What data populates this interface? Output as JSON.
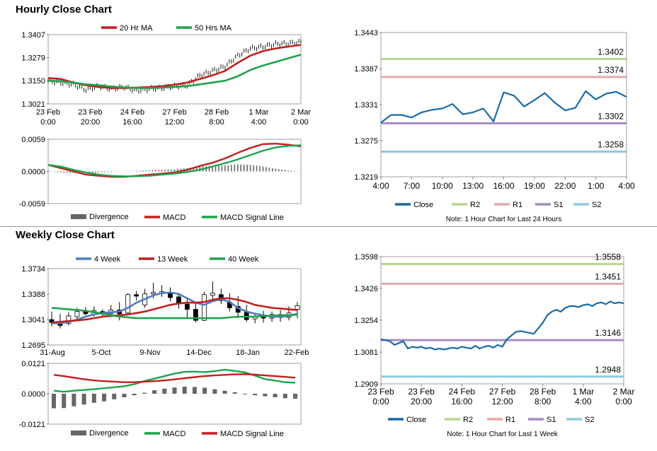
{
  "sections": {
    "hourly_title": "Hourly Close Chart",
    "weekly_title": "Weekly Close Chart"
  },
  "colors": {
    "red": "#c0201d",
    "green": "#1fa24c",
    "blue": "#4e7ec2",
    "close": "#1a6aa5",
    "r2": "#b9d68c",
    "r1": "#e7a8a6",
    "s1": "#a48bc1",
    "s2": "#8fcadc",
    "divergence": "#666666",
    "candle_up": "#ffffff",
    "candle_down": "#000000"
  },
  "chart_data": [
    {
      "id": "hourly-price",
      "type": "line",
      "title": "",
      "y_ticks": [
        "1.3407",
        "1.3279",
        "1.3150",
        "1.3021"
      ],
      "ylim": [
        1.3021,
        1.3407
      ],
      "x_tick_labels": [
        [
          "23 Feb",
          "0:00"
        ],
        [
          "23 Feb",
          "20:00"
        ],
        [
          "24 Feb",
          "16:00"
        ],
        [
          "27 Feb",
          "12:00"
        ],
        [
          "28 Feb",
          "8:00"
        ],
        [
          "1 Mar",
          "4:00"
        ],
        [
          "2 Mar",
          "0:00"
        ]
      ],
      "x": [
        0,
        1,
        2,
        3,
        4,
        5,
        6,
        7,
        8,
        9,
        10,
        11,
        12,
        13,
        14,
        15,
        16,
        17,
        18,
        19,
        20
      ],
      "price": [
        1.315,
        1.314,
        1.313,
        1.31,
        1.312,
        1.3105,
        1.3115,
        1.3095,
        1.3105,
        1.311,
        1.312,
        1.3125,
        1.318,
        1.3205,
        1.323,
        1.329,
        1.333,
        1.334,
        1.3355,
        1.3358,
        1.3365
      ],
      "series": [
        {
          "name": "20 Hr MA",
          "color": "red",
          "values": [
            1.3165,
            1.316,
            1.314,
            1.3125,
            1.3115,
            1.311,
            1.311,
            1.3112,
            1.3115,
            1.312,
            1.3128,
            1.314,
            1.316,
            1.318,
            1.3205,
            1.325,
            1.329,
            1.3315,
            1.333,
            1.334,
            1.335
          ]
        },
        {
          "name": "50 Hrs MA",
          "color": "green",
          "values": [
            1.315,
            1.3148,
            1.314,
            1.313,
            1.3125,
            1.3118,
            1.3113,
            1.311,
            1.311,
            1.3112,
            1.3115,
            1.312,
            1.313,
            1.314,
            1.315,
            1.3175,
            1.321,
            1.3235,
            1.3255,
            1.3275,
            1.3295
          ]
        }
      ]
    },
    {
      "id": "hourly-macd",
      "type": "line",
      "title": "",
      "y_ticks": [
        "0.0059",
        "0.0000",
        "-0.0059"
      ],
      "ylim": [
        -0.0059,
        0.0059
      ],
      "x": [
        0,
        1,
        2,
        3,
        4,
        5,
        6,
        7,
        8,
        9,
        10,
        11,
        12,
        13,
        14,
        15,
        16,
        17,
        18,
        19,
        20
      ],
      "series": [
        {
          "name": "Divergence",
          "color": "divergence",
          "type": "bar",
          "values": [
            0.0,
            -0.0002,
            -0.0003,
            -0.0004,
            -0.0002,
            -0.0001,
            0.0,
            0.0001,
            0.0002,
            0.0003,
            0.0004,
            0.0006,
            0.0009,
            0.001,
            0.0011,
            0.0013,
            0.0012,
            0.0009,
            0.0005,
            0.0002,
            0.0
          ]
        },
        {
          "name": "MACD",
          "color": "red",
          "values": [
            0.0012,
            0.0006,
            0.0,
            -0.0006,
            -0.0008,
            -0.001,
            -0.001,
            -0.0008,
            -0.0006,
            -0.0004,
            -0.0002,
            0.0003,
            0.001,
            0.0016,
            0.0024,
            0.0034,
            0.0043,
            0.005,
            0.0051,
            0.0049,
            0.0046
          ]
        },
        {
          "name": "MACD Signal Line",
          "color": "green",
          "values": [
            0.0012,
            0.0009,
            0.0003,
            -0.0002,
            -0.0006,
            -0.0008,
            -0.0009,
            -0.0009,
            -0.0008,
            -0.0006,
            -0.0004,
            -0.0001,
            0.0003,
            0.0009,
            0.0015,
            0.0022,
            0.003,
            0.0038,
            0.0044,
            0.0047,
            0.0048
          ]
        }
      ]
    },
    {
      "id": "hourly-pivot",
      "type": "line",
      "title": "",
      "y_ticks": [
        "1.3443",
        "1.3387",
        "1.3331",
        "1.3275",
        "1.3219"
      ],
      "ylim": [
        1.3219,
        1.3443
      ],
      "x_tick_labels": [
        "4:00",
        "7:00",
        "10:00",
        "13:00",
        "16:00",
        "19:00",
        "22:00",
        "1:00",
        "4:00"
      ],
      "series": [
        {
          "name": "Close",
          "color": "close",
          "values": [
            1.3303,
            1.3315,
            1.3315,
            1.3311,
            1.3319,
            1.3323,
            1.3325,
            1.3332,
            1.3316,
            1.3319,
            1.3325,
            1.3305,
            1.335,
            1.3345,
            1.3328,
            1.3338,
            1.3349,
            1.3334,
            1.3322,
            1.3326,
            1.3352,
            1.3339,
            1.3348,
            1.3351,
            1.3343
          ]
        }
      ],
      "levels": [
        {
          "name": "R2",
          "value": 1.3402,
          "label": "1.3402",
          "color": "r2"
        },
        {
          "name": "R1",
          "value": 1.3374,
          "label": "1.3374",
          "color": "r1"
        },
        {
          "name": "S1",
          "value": 1.3302,
          "label": "1.3302",
          "color": "s1"
        },
        {
          "name": "S2",
          "value": 1.3258,
          "label": "1.3258",
          "color": "s2"
        }
      ],
      "legend": [
        "Close",
        "R2",
        "R1",
        "S1",
        "S2"
      ],
      "note": "Note: 1 Hour Chart for Last 24 Hours"
    },
    {
      "id": "weekly-price",
      "type": "line",
      "title": "",
      "y_ticks": [
        "1.3734",
        "1.3388",
        "1.3041",
        "1.2695"
      ],
      "ylim": [
        1.2695,
        1.3734
      ],
      "x_tick_labels": [
        "31-Aug",
        "5-Oct",
        "9-Nov",
        "14-Dec",
        "18-Jan",
        "22-Feb"
      ],
      "candles": [
        {
          "o": 1.304,
          "c": 1.3,
          "h": 1.315,
          "l": 1.295
        },
        {
          "o": 1.3,
          "c": 1.296,
          "h": 1.312,
          "l": 1.292
        },
        {
          "o": 1.299,
          "c": 1.309,
          "h": 1.314,
          "l": 1.296
        },
        {
          "o": 1.308,
          "c": 1.315,
          "h": 1.32,
          "l": 1.304
        },
        {
          "o": 1.316,
          "c": 1.312,
          "h": 1.321,
          "l": 1.31
        },
        {
          "o": 1.311,
          "c": 1.316,
          "h": 1.322,
          "l": 1.308
        },
        {
          "o": 1.315,
          "c": 1.312,
          "h": 1.318,
          "l": 1.309
        },
        {
          "o": 1.312,
          "c": 1.317,
          "h": 1.324,
          "l": 1.31
        },
        {
          "o": 1.317,
          "c": 1.312,
          "h": 1.328,
          "l": 1.303
        },
        {
          "o": 1.313,
          "c": 1.338,
          "h": 1.34,
          "l": 1.311
        },
        {
          "o": 1.338,
          "c": 1.336,
          "h": 1.343,
          "l": 1.33
        },
        {
          "o": 1.324,
          "c": 1.339,
          "h": 1.346,
          "l": 1.32
        },
        {
          "o": 1.339,
          "c": 1.341,
          "h": 1.354,
          "l": 1.333
        },
        {
          "o": 1.34,
          "c": 1.342,
          "h": 1.351,
          "l": 1.335
        },
        {
          "o": 1.341,
          "c": 1.334,
          "h": 1.348,
          "l": 1.329
        },
        {
          "o": 1.335,
          "c": 1.326,
          "h": 1.34,
          "l": 1.319
        },
        {
          "o": 1.325,
          "c": 1.318,
          "h": 1.334,
          "l": 1.305
        },
        {
          "o": 1.318,
          "c": 1.303,
          "h": 1.327,
          "l": 1.3
        },
        {
          "o": 1.303,
          "c": 1.338,
          "h": 1.342,
          "l": 1.302
        },
        {
          "o": 1.337,
          "c": 1.34,
          "h": 1.356,
          "l": 1.329
        },
        {
          "o": 1.338,
          "c": 1.33,
          "h": 1.346,
          "l": 1.325
        },
        {
          "o": 1.328,
          "c": 1.32,
          "h": 1.34,
          "l": 1.315
        },
        {
          "o": 1.322,
          "c": 1.314,
          "h": 1.336,
          "l": 1.306
        },
        {
          "o": 1.314,
          "c": 1.304,
          "h": 1.324,
          "l": 1.301
        },
        {
          "o": 1.305,
          "c": 1.308,
          "h": 1.313,
          "l": 1.299
        },
        {
          "o": 1.308,
          "c": 1.306,
          "h": 1.316,
          "l": 1.3
        },
        {
          "o": 1.306,
          "c": 1.311,
          "h": 1.315,
          "l": 1.301
        },
        {
          "o": 1.311,
          "c": 1.307,
          "h": 1.317,
          "l": 1.301
        },
        {
          "o": 1.307,
          "c": 1.313,
          "h": 1.322,
          "l": 1.303
        },
        {
          "o": 1.318,
          "c": 1.323,
          "h": 1.328,
          "l": 1.306
        }
      ],
      "series": [
        {
          "name": "4 Week",
          "color": "blue",
          "values": [
            1.299,
            1.299,
            1.301,
            1.304,
            1.308,
            1.311,
            1.313,
            1.314,
            1.315,
            1.32,
            1.327,
            1.332,
            1.337,
            1.34,
            1.341,
            1.339,
            1.333,
            1.327,
            1.324,
            1.329,
            1.332,
            1.328,
            1.32,
            1.315,
            1.312,
            1.31,
            1.308,
            1.308,
            1.309,
            1.312
          ]
        },
        {
          "name": "13 Week",
          "color": "red",
          "values": [
            1.3,
            1.301,
            1.302,
            1.303,
            1.304,
            1.306,
            1.308,
            1.309,
            1.31,
            1.311,
            1.313,
            1.315,
            1.318,
            1.321,
            1.324,
            1.326,
            1.327,
            1.327,
            1.328,
            1.331,
            1.333,
            1.333,
            1.331,
            1.328,
            1.324,
            1.322,
            1.32,
            1.319,
            1.318,
            1.317
          ]
        },
        {
          "name": "40 Week",
          "color": "green",
          "values": [
            1.32,
            1.319,
            1.318,
            1.317,
            1.316,
            1.314,
            1.312,
            1.31,
            1.308,
            1.307,
            1.306,
            1.306,
            1.306,
            1.306,
            1.306,
            1.306,
            1.306,
            1.306,
            1.306,
            1.306,
            1.306,
            1.307,
            1.308,
            1.308,
            1.308,
            1.309,
            1.309,
            1.31,
            1.31,
            1.311
          ]
        }
      ]
    },
    {
      "id": "weekly-macd",
      "type": "line",
      "title": "",
      "y_ticks": [
        "0.0121",
        "0.0000",
        "-0.0121"
      ],
      "ylim": [
        -0.0121,
        0.0121
      ],
      "series": [
        {
          "name": "Divergence",
          "color": "divergence",
          "type": "bar",
          "values": [
            -0.0058,
            -0.0057,
            -0.005,
            -0.0043,
            -0.0036,
            -0.003,
            -0.0022,
            -0.0014,
            -0.0006,
            0.0004,
            0.0014,
            0.002,
            0.0025,
            0.0028,
            0.0027,
            0.0024,
            0.0018,
            0.0012,
            0.0006,
            0.0,
            -0.0006,
            -0.001,
            -0.0014,
            -0.0018,
            -0.002
          ]
        },
        {
          "name": "MACD",
          "color": "green",
          "values": [
            0.0012,
            0.0008,
            0.0012,
            0.0015,
            0.0018,
            0.0022,
            0.0026,
            0.003,
            0.0038,
            0.005,
            0.006,
            0.007,
            0.008,
            0.0087,
            0.0088,
            0.0086,
            0.009,
            0.0096,
            0.0091,
            0.0085,
            0.0072,
            0.0058,
            0.0052,
            0.0046,
            0.0044
          ]
        },
        {
          "name": "MACD Signal Line",
          "color": "red",
          "values": [
            0.0075,
            0.007,
            0.0064,
            0.0058,
            0.0053,
            0.005,
            0.0048,
            0.0046,
            0.0046,
            0.0048,
            0.005,
            0.0053,
            0.0057,
            0.0062,
            0.0066,
            0.007,
            0.0073,
            0.0075,
            0.0077,
            0.0078,
            0.0076,
            0.0073,
            0.007,
            0.0067,
            0.0064
          ]
        }
      ]
    },
    {
      "id": "weekly-pivot",
      "type": "line",
      "title": "",
      "y_ticks": [
        "1.3598",
        "1.3426",
        "1.3254",
        "1.3081",
        "1.2909"
      ],
      "ylim": [
        1.2909,
        1.3598
      ],
      "x_tick_labels": [
        [
          "23 Feb",
          "0:00"
        ],
        [
          "23 Feb",
          "20:00"
        ],
        [
          "24 Feb",
          "16:00"
        ],
        [
          "27 Feb",
          "12:00"
        ],
        [
          "28 Feb",
          "8:00"
        ],
        [
          "1 Mar",
          "4:00"
        ],
        [
          "2 Mar",
          "0:00"
        ]
      ],
      "series": [
        {
          "name": "Close",
          "color": "close",
          "values": [
            1.315,
            1.3145,
            1.314,
            1.312,
            1.313,
            1.314,
            1.31,
            1.311,
            1.3105,
            1.311,
            1.31,
            1.3105,
            1.3095,
            1.31,
            1.3095,
            1.31,
            1.3105,
            1.31,
            1.311,
            1.3105,
            1.31,
            1.3115,
            1.31,
            1.311,
            1.3115,
            1.3105,
            1.312,
            1.311,
            1.315,
            1.317,
            1.319,
            1.3195,
            1.319,
            1.3185,
            1.318,
            1.321,
            1.324,
            1.328,
            1.33,
            1.331,
            1.33,
            1.332,
            1.333,
            1.333,
            1.3325,
            1.3335,
            1.334,
            1.333,
            1.3345,
            1.335,
            1.334,
            1.3355,
            1.3345,
            1.335,
            1.3345
          ]
        }
      ],
      "levels": [
        {
          "name": "R2",
          "value": 1.3558,
          "label": "1.3558",
          "color": "r2"
        },
        {
          "name": "R1",
          "value": 1.3451,
          "label": "1.3451",
          "color": "r1"
        },
        {
          "name": "S1",
          "value": 1.3146,
          "label": "1.3146",
          "color": "s1"
        },
        {
          "name": "S2",
          "value": 1.2948,
          "label": "1.2948",
          "color": "s2"
        }
      ],
      "legend": [
        "Close",
        "R2",
        "R1",
        "S1",
        "S2"
      ],
      "note": "Note: 1 Hour Chart for  Last 1 Week"
    }
  ]
}
